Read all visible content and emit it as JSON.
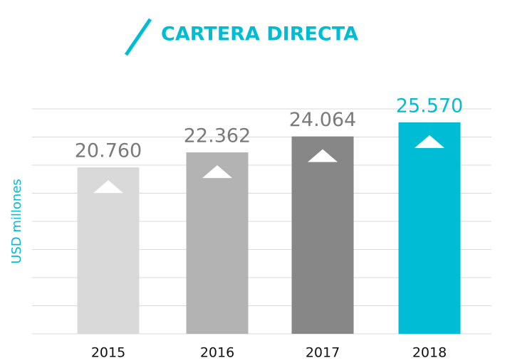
{
  "chart_data": {
    "type": "bar",
    "title": "CARTERA DIRECTA",
    "y_label": "USD millones",
    "categories": [
      "2015",
      "2016",
      "2017",
      "2018"
    ],
    "values": [
      20760,
      22362,
      24064,
      25570
    ],
    "value_labels": [
      "20.760",
      "22.362",
      "24.064",
      "25.570"
    ],
    "colors": [
      "#d9d9d9",
      "#b3b3b3",
      "#878787",
      "#00bcd4"
    ],
    "value_label_colors": [
      "#7a7a7a",
      "#7a7a7a",
      "#7a7a7a",
      "#00bcd4"
    ],
    "ylim": [
      3000,
      27000
    ],
    "yticks": [
      3000,
      6000,
      9000,
      12000,
      15000,
      18000,
      21000,
      24000,
      27000
    ],
    "grid": true
  }
}
